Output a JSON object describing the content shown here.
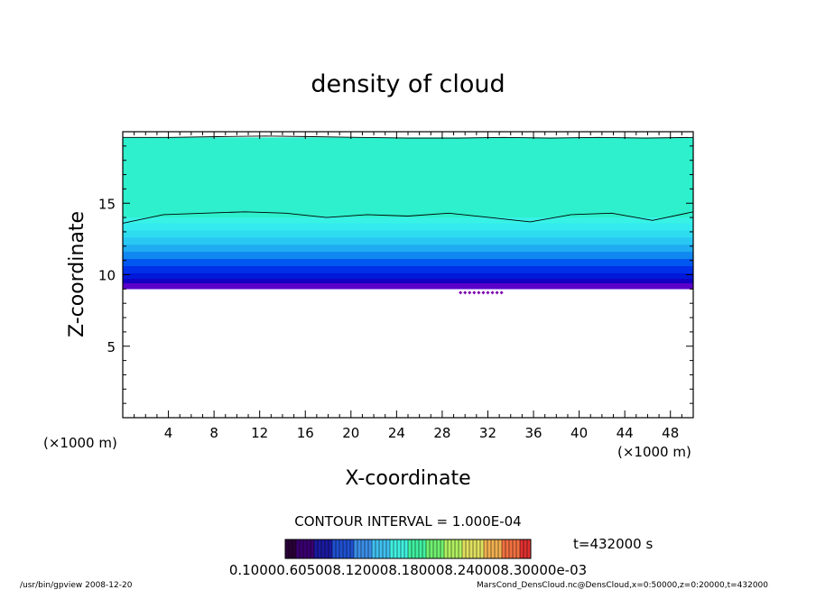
{
  "chart_data": {
    "type": "heatmap",
    "title": "density of cloud",
    "xlabel": "X-coordinate",
    "ylabel": "Z-coordinate",
    "x_unit": "(×1000 m)",
    "y_unit": "(×1000 m)",
    "xlim": [
      0,
      50
    ],
    "ylim": [
      0,
      20
    ],
    "xticks": [
      4,
      8,
      12,
      16,
      20,
      24,
      28,
      32,
      36,
      40,
      44,
      48
    ],
    "yticks": [
      5,
      10,
      15
    ],
    "contour_interval": "CONTOUR INTERVAL = 1.000E-04",
    "time": "t=432000 s",
    "colorbar_labels": "0.10000.605008.120008.180008.240008.30000e-03",
    "colorbar_colors": [
      "#2a0038",
      "#3a0070",
      "#1a1aa0",
      "#2050d0",
      "#3a8ee8",
      "#40c0f0",
      "#40f0e0",
      "#40f0a0",
      "#70f070",
      "#b0f060",
      "#e0e060",
      "#f0b050",
      "#f07040",
      "#e03030"
    ],
    "footer_left": "/usr/bin/gpview   2008-12-20",
    "footer_right": "MarsCond_DensCloud.nc@DensCloud,x=0:50000,z=0:20000,t=432000",
    "fill_levels": [
      {
        "z": 9.0,
        "color": "#7a00b0"
      },
      {
        "z": 9.4,
        "color": "#5a00c8"
      },
      {
        "z": 9.7,
        "color": "#1400c0"
      },
      {
        "z": 10.1,
        "color": "#0018d8"
      },
      {
        "z": 10.6,
        "color": "#0030e8"
      },
      {
        "z": 11.1,
        "color": "#0058f0"
      },
      {
        "z": 11.6,
        "color": "#1088f0"
      },
      {
        "z": 12.1,
        "color": "#20acf2"
      },
      {
        "z": 12.6,
        "color": "#28c8f2"
      },
      {
        "z": 13.1,
        "color": "#2edcf0"
      },
      {
        "z": 13.6,
        "color": "#34eaee"
      },
      {
        "z": 14.0,
        "color": "#38f2e6"
      },
      {
        "z": 19.6,
        "color": "#2ef0cc"
      }
    ],
    "cloud_base_z": 9.0,
    "cloud_top_z": 19.6,
    "contours": [
      {
        "level": "upper",
        "z_values": [
          19.6,
          19.6,
          19.65,
          19.7,
          19.65,
          19.6,
          19.55,
          19.55,
          19.6,
          19.55,
          19.6,
          19.55,
          19.6
        ]
      },
      {
        "level": "lower",
        "z_values": [
          13.6,
          14.2,
          14.3,
          14.4,
          14.3,
          14.0,
          14.2,
          14.1,
          14.3,
          14.0,
          13.7,
          14.2,
          14.3,
          13.8,
          14.4
        ]
      }
    ]
  }
}
